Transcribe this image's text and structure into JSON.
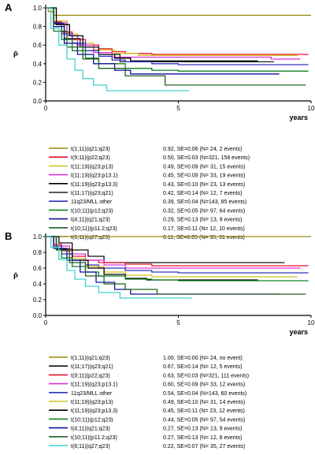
{
  "chart_data": [
    {
      "type": "line",
      "panel_label": "A",
      "ylabel": "P̂",
      "xlabel": "years",
      "xlim": [
        0,
        10
      ],
      "ylim": [
        0,
        1.0
      ],
      "x_ticks": [
        "0",
        "5",
        "10"
      ],
      "y_ticks": [
        "0.0",
        "0.2",
        "0.4",
        "0.6",
        "0.8",
        "1.0"
      ],
      "series": [
        {
          "name": "t(1;11)(q21;q23)",
          "stat": "0.92, SE=0.06 (N=  24, 2 events)",
          "color": "#9a8a10",
          "points": [
            [
              0,
              1.0
            ],
            [
              0.1,
              0.96
            ],
            [
              0.3,
              0.92
            ],
            [
              10,
              0.92
            ]
          ]
        },
        {
          "name": "t(9;11)(p22;q23)",
          "stat": "0.50, SE=0.03 (N=321, 158 events)",
          "color": "#e8102a",
          "points": [
            [
              0,
              1.0
            ],
            [
              0.3,
              0.85
            ],
            [
              0.6,
              0.74
            ],
            [
              1,
              0.66
            ],
            [
              1.5,
              0.6
            ],
            [
              2,
              0.56
            ],
            [
              2.5,
              0.53
            ],
            [
              3,
              0.51
            ],
            [
              4,
              0.5
            ],
            [
              9.9,
              0.5
            ]
          ]
        },
        {
          "name": "t(11;19)(q23;p13)",
          "stat": "0.49, SE=0.09 (N=  31, 15 events)",
          "color": "#d4c020",
          "points": [
            [
              0,
              1.0
            ],
            [
              0.4,
              0.86
            ],
            [
              0.8,
              0.72
            ],
            [
              1.2,
              0.62
            ],
            [
              1.8,
              0.55
            ],
            [
              2.6,
              0.51
            ],
            [
              3.5,
              0.49
            ],
            [
              9.5,
              0.49
            ]
          ]
        },
        {
          "name": "t(11;19)(q23;p13.1)",
          "stat": "0.45, SE=0.09 (N=  33, 19 events)",
          "color": "#e030d8",
          "points": [
            [
              0,
              1.0
            ],
            [
              0.3,
              0.84
            ],
            [
              0.8,
              0.7
            ],
            [
              1.2,
              0.6
            ],
            [
              1.8,
              0.52
            ],
            [
              2.5,
              0.47
            ],
            [
              8.5,
              0.47
            ],
            [
              8.5,
              0.45
            ],
            [
              9.6,
              0.45
            ]
          ]
        },
        {
          "name": "t(11;19)(q23;p13.3)",
          "stat": "0.43, SE=0.10 (N=  23, 13 events)",
          "color": "#000000",
          "points": [
            [
              0,
              1.0
            ],
            [
              0.4,
              0.82
            ],
            [
              0.9,
              0.7
            ],
            [
              1.4,
              0.58
            ],
            [
              2.0,
              0.5
            ],
            [
              2.6,
              0.46
            ],
            [
              3.2,
              0.43
            ],
            [
              8.0,
              0.43
            ]
          ]
        },
        {
          "name": "t(11;17)(q23;q21)",
          "stat": "0.42, SE=0.14 (N=  12, 7 events)",
          "color": "#202020",
          "points": [
            [
              0,
              1.0
            ],
            [
              0.3,
              0.83
            ],
            [
              0.7,
              0.67
            ],
            [
              1.3,
              0.58
            ],
            [
              2.0,
              0.5
            ],
            [
              2.8,
              0.42
            ],
            [
              8.6,
              0.42
            ]
          ]
        },
        {
          "name": "11q23/MLL other",
          "stat": "0.39, SE=0.04 (N=143, 85 events)",
          "color": "#3030c0",
          "points": [
            [
              0,
              1.0
            ],
            [
              0.3,
              0.84
            ],
            [
              0.6,
              0.72
            ],
            [
              1,
              0.62
            ],
            [
              1.5,
              0.54
            ],
            [
              2,
              0.48
            ],
            [
              2.5,
              0.44
            ],
            [
              3,
              0.42
            ],
            [
              4,
              0.4
            ],
            [
              5,
              0.39
            ],
            [
              9.9,
              0.39
            ]
          ]
        },
        {
          "name": "t(10;11)(p12;q23)",
          "stat": "0.32, SE=0.05 (N=  97, 64 events)",
          "color": "#108020",
          "points": [
            [
              0,
              1.0
            ],
            [
              0.3,
              0.8
            ],
            [
              0.6,
              0.66
            ],
            [
              1,
              0.54
            ],
            [
              1.5,
              0.46
            ],
            [
              2,
              0.4
            ],
            [
              3,
              0.35
            ],
            [
              4,
              0.33
            ],
            [
              5,
              0.32
            ],
            [
              9.9,
              0.32
            ]
          ]
        },
        {
          "name": "t(4;11)(q21;q23)",
          "stat": "0.29, SE=0.13 (N=  13, 9 events)",
          "color": "#1010a0",
          "points": [
            [
              0,
              1.0
            ],
            [
              0.3,
              0.8
            ],
            [
              0.7,
              0.62
            ],
            [
              1.2,
              0.5
            ],
            [
              1.8,
              0.4
            ],
            [
              2.6,
              0.33
            ],
            [
              3.2,
              0.29
            ],
            [
              8.8,
              0.29
            ]
          ]
        },
        {
          "name": "t(10;11)(p11.2;q23)",
          "stat": "0.17, SE=0.11 (N=  12, 10 events)",
          "color": "#206020",
          "points": [
            [
              0,
              1.0
            ],
            [
              0.3,
              0.75
            ],
            [
              0.8,
              0.58
            ],
            [
              1.4,
              0.45
            ],
            [
              2.0,
              0.35
            ],
            [
              3.0,
              0.27
            ],
            [
              4.5,
              0.17
            ],
            [
              9.8,
              0.17
            ]
          ]
        },
        {
          "name": "t(6;11)(q27;q23)",
          "stat": "0.11, SE=0.05 (N=  35, 31 events)",
          "color": "#40d0d0",
          "points": [
            [
              0,
              1.0
            ],
            [
              0.2,
              0.78
            ],
            [
              0.5,
              0.6
            ],
            [
              0.8,
              0.45
            ],
            [
              1.1,
              0.33
            ],
            [
              1.4,
              0.24
            ],
            [
              1.8,
              0.17
            ],
            [
              2.3,
              0.11
            ],
            [
              5.4,
              0.11
            ]
          ]
        }
      ]
    },
    {
      "type": "line",
      "panel_label": "B",
      "ylabel": "P̂",
      "xlabel": "years",
      "xlim": [
        0,
        10
      ],
      "ylim": [
        0,
        1.0
      ],
      "x_ticks": [
        "0",
        "5",
        "10"
      ],
      "y_ticks": [
        "0.0",
        "0.2",
        "0.4",
        "0.6",
        "0.8",
        "1.0"
      ],
      "series": [
        {
          "name": "t(1;11)(q21;q23)",
          "stat": "1.00, SE=0.00 (N=  24, no event)",
          "color": "#9a8a10",
          "points": [
            [
              0,
              1.0
            ],
            [
              10,
              1.0
            ]
          ]
        },
        {
          "name": "t(11;17)(q23;q21)",
          "stat": "0.67, SE=0.14 (N=  12, 5 events)",
          "color": "#101010",
          "points": [
            [
              0,
              1.0
            ],
            [
              0.5,
              0.92
            ],
            [
              1.0,
              0.83
            ],
            [
              1.6,
              0.75
            ],
            [
              2.2,
              0.67
            ],
            [
              9.0,
              0.67
            ]
          ]
        },
        {
          "name": "t(9;11)(p22;q23)",
          "stat": "0.63, SE=0.03 (N=321, 111 events)",
          "color": "#e8102a",
          "points": [
            [
              0,
              1.0
            ],
            [
              0.3,
              0.9
            ],
            [
              0.6,
              0.82
            ],
            [
              1,
              0.75
            ],
            [
              1.5,
              0.7
            ],
            [
              2,
              0.67
            ],
            [
              3,
              0.65
            ],
            [
              4,
              0.63
            ],
            [
              9.9,
              0.63
            ]
          ]
        },
        {
          "name": "t(11;19)(q23;p13.1)",
          "stat": "0.60, SE=0.09 (N=  33, 12 events)",
          "color": "#e030d8",
          "points": [
            [
              0,
              1.0
            ],
            [
              0.4,
              0.88
            ],
            [
              0.9,
              0.78
            ],
            [
              1.5,
              0.7
            ],
            [
              2.2,
              0.64
            ],
            [
              3.0,
              0.6
            ],
            [
              9.6,
              0.6
            ]
          ]
        },
        {
          "name": "11q23/MLL other",
          "stat": "0.54, SE=0.04 (N=143, 60 events)",
          "color": "#3030c0",
          "points": [
            [
              0,
              1.0
            ],
            [
              0.3,
              0.88
            ],
            [
              0.6,
              0.78
            ],
            [
              1,
              0.7
            ],
            [
              1.5,
              0.64
            ],
            [
              2,
              0.6
            ],
            [
              3,
              0.57
            ],
            [
              4,
              0.55
            ],
            [
              5,
              0.54
            ],
            [
              9.9,
              0.54
            ]
          ]
        },
        {
          "name": "t(11;19)(q23;p13)",
          "stat": "0.49, SE=0.10 (N=  31, 14 events)",
          "color": "#d4c020",
          "points": [
            [
              0,
              1.0
            ],
            [
              0.4,
              0.85
            ],
            [
              0.9,
              0.72
            ],
            [
              1.5,
              0.62
            ],
            [
              2.2,
              0.55
            ],
            [
              3.0,
              0.51
            ],
            [
              4.0,
              0.49
            ],
            [
              9.5,
              0.49
            ]
          ]
        },
        {
          "name": "t(11;19)(q23;p13.3)",
          "stat": "0.45, SE=0.11 (N=  23, 12 events)",
          "color": "#000000",
          "points": [
            [
              0,
              1.0
            ],
            [
              0.4,
              0.84
            ],
            [
              1.0,
              0.7
            ],
            [
              1.6,
              0.6
            ],
            [
              2.2,
              0.52
            ],
            [
              3.0,
              0.47
            ],
            [
              3.8,
              0.45
            ],
            [
              8.0,
              0.45
            ]
          ]
        },
        {
          "name": "t(10;11)(p12;q23)",
          "stat": "0.44, SE=0.05 (N=  97, 54 events)",
          "color": "#108020",
          "points": [
            [
              0,
              1.0
            ],
            [
              0.3,
              0.85
            ],
            [
              0.6,
              0.73
            ],
            [
              1,
              0.62
            ],
            [
              1.5,
              0.55
            ],
            [
              2,
              0.5
            ],
            [
              3,
              0.46
            ],
            [
              4,
              0.45
            ],
            [
              5,
              0.44
            ],
            [
              9.9,
              0.44
            ]
          ]
        },
        {
          "name": "t(4;11)(q21;q23)",
          "stat": "0.27, SE=0.13 (N=  13, 9 events)",
          "color": "#1010a0",
          "points": [
            [
              0,
              1.0
            ],
            [
              0.3,
              0.85
            ],
            [
              0.8,
              0.7
            ],
            [
              1.3,
              0.55
            ],
            [
              1.9,
              0.42
            ],
            [
              2.6,
              0.33
            ],
            [
              3.2,
              0.27
            ],
            [
              8.8,
              0.27
            ]
          ]
        },
        {
          "name": "t(10;11)(p11.2;q23)",
          "stat": "0.27, SE=0.13 (N=  12, 8 events)",
          "color": "#206020",
          "points": [
            [
              0,
              1.0
            ],
            [
              0.4,
              0.83
            ],
            [
              0.9,
              0.67
            ],
            [
              1.5,
              0.5
            ],
            [
              2.2,
              0.4
            ],
            [
              3.0,
              0.33
            ],
            [
              4.2,
              0.27
            ],
            [
              9.8,
              0.27
            ]
          ]
        },
        {
          "name": "t(6;11)(q27;q23)",
          "stat": "0.22, SE=0.07 (N=  35, 27 events)",
          "color": "#40d0d0",
          "points": [
            [
              0,
              1.0
            ],
            [
              0.2,
              0.86
            ],
            [
              0.5,
              0.71
            ],
            [
              0.8,
              0.57
            ],
            [
              1.1,
              0.46
            ],
            [
              1.5,
              0.37
            ],
            [
              2.0,
              0.29
            ],
            [
              2.8,
              0.22
            ],
            [
              5.5,
              0.22
            ]
          ]
        }
      ]
    }
  ]
}
